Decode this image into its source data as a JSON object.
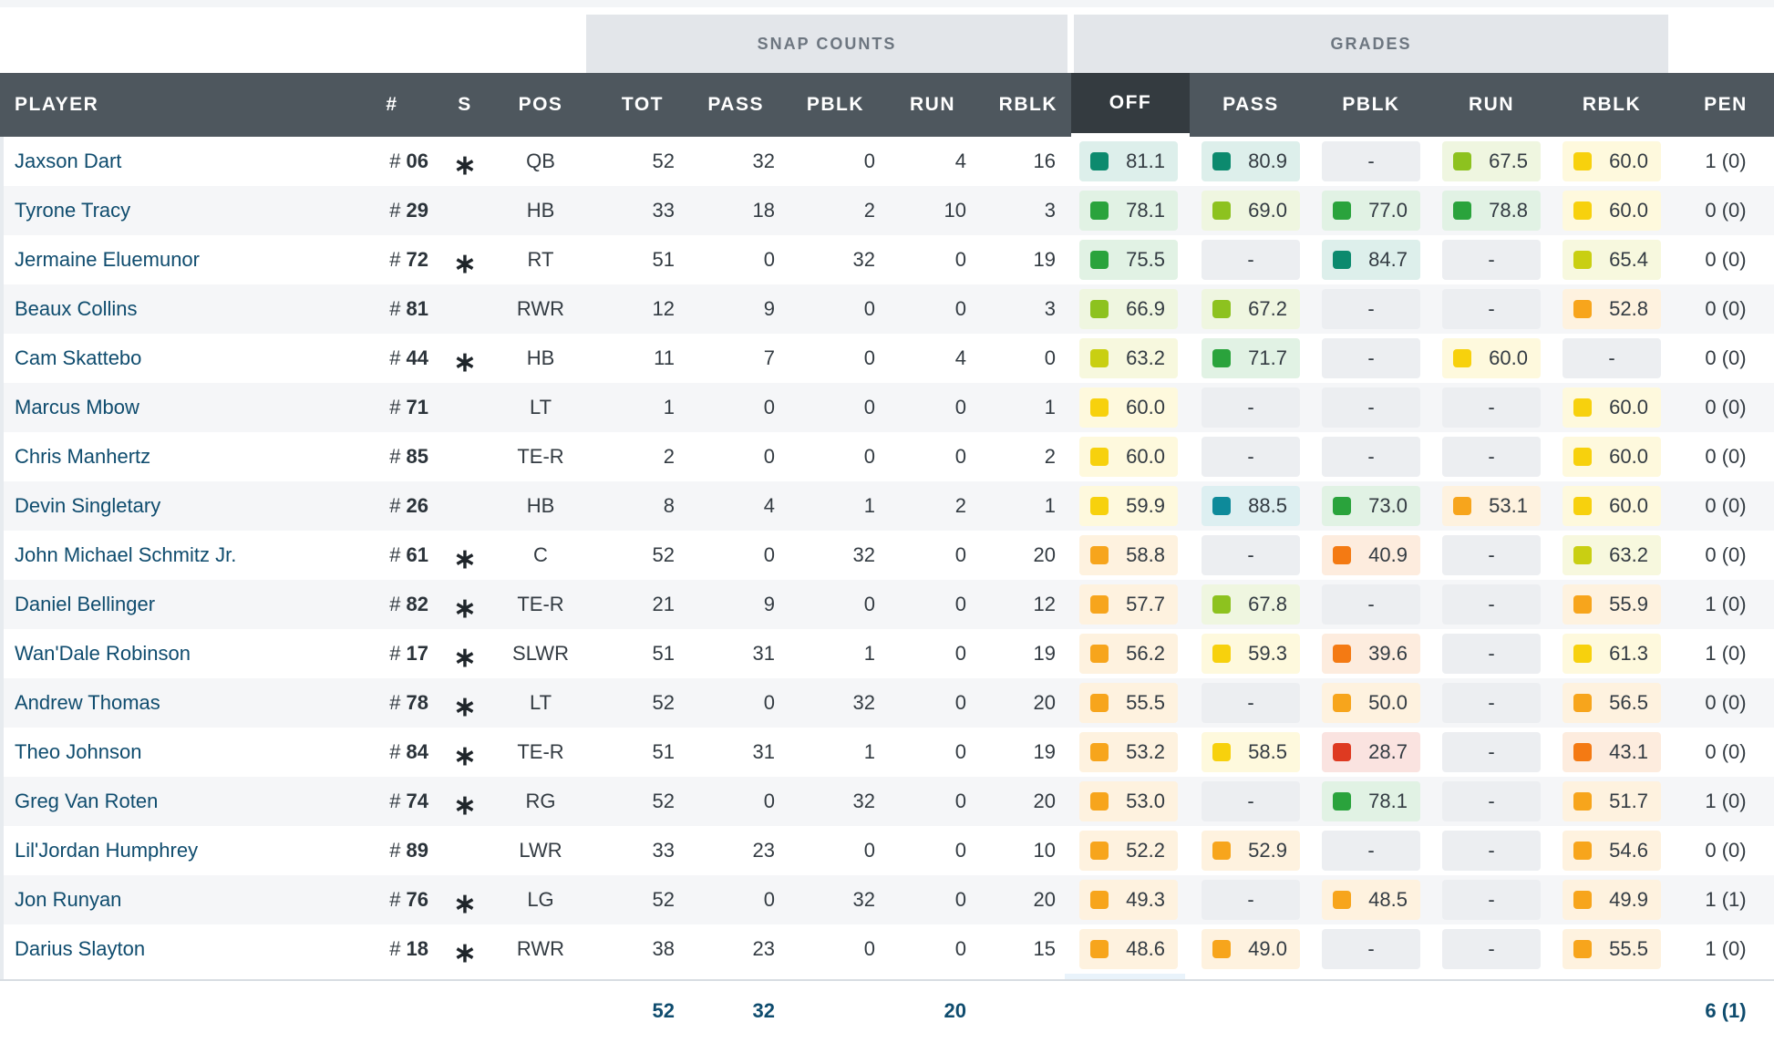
{
  "groups": {
    "snap_counts": "SNAP COUNTS",
    "grades": "GRADES"
  },
  "columns": {
    "player": "PLAYER",
    "number": "#",
    "starter": "S",
    "pos": "POS",
    "tot": "TOT",
    "pass": "PASS",
    "pblk": "PBLK",
    "run": "RUN",
    "rblk": "RBLK",
    "g_off": "OFF",
    "g_pass": "PASS",
    "g_pblk": "PBLK",
    "g_run": "RUN",
    "g_rblk": "RBLK",
    "pen": "PEN"
  },
  "hash_symbol": "#",
  "starter_symbol": "∗",
  "grade_colors": {
    "elite": "#0c8a6e",
    "teal": "#0e8a9a",
    "high": "#2aa33c",
    "good": "#8dc21f",
    "above": "#c9cf12",
    "avg": "#f7d10d",
    "below": "#f7a51c",
    "low": "#f47a13",
    "poor": "#de3a21"
  },
  "players": [
    {
      "name": "Jaxson Dart",
      "jersey": "06",
      "starter": true,
      "pos": "QB",
      "tot": "52",
      "pass": "32",
      "pblk": "0",
      "run": "4",
      "rblk": "16",
      "off": {
        "v": "81.1",
        "c": "elite"
      },
      "gpass": {
        "v": "80.9",
        "c": "elite"
      },
      "gpblk": {
        "v": "-",
        "c": ""
      },
      "grun": {
        "v": "67.5",
        "c": "good"
      },
      "grblk": {
        "v": "60.0",
        "c": "avg"
      },
      "pen": "1 (0)"
    },
    {
      "name": "Tyrone Tracy",
      "jersey": "29",
      "starter": false,
      "pos": "HB",
      "tot": "33",
      "pass": "18",
      "pblk": "2",
      "run": "10",
      "rblk": "3",
      "off": {
        "v": "78.1",
        "c": "high"
      },
      "gpass": {
        "v": "69.0",
        "c": "good"
      },
      "gpblk": {
        "v": "77.0",
        "c": "high"
      },
      "grun": {
        "v": "78.8",
        "c": "high"
      },
      "grblk": {
        "v": "60.0",
        "c": "avg"
      },
      "pen": "0 (0)"
    },
    {
      "name": "Jermaine Eluemunor",
      "jersey": "72",
      "starter": true,
      "pos": "RT",
      "tot": "51",
      "pass": "0",
      "pblk": "32",
      "run": "0",
      "rblk": "19",
      "off": {
        "v": "75.5",
        "c": "high"
      },
      "gpass": {
        "v": "-",
        "c": ""
      },
      "gpblk": {
        "v": "84.7",
        "c": "elite"
      },
      "grun": {
        "v": "-",
        "c": ""
      },
      "grblk": {
        "v": "65.4",
        "c": "above"
      },
      "pen": "0 (0)"
    },
    {
      "name": "Beaux Collins",
      "jersey": "81",
      "starter": false,
      "pos": "RWR",
      "tot": "12",
      "pass": "9",
      "pblk": "0",
      "run": "0",
      "rblk": "3",
      "off": {
        "v": "66.9",
        "c": "good"
      },
      "gpass": {
        "v": "67.2",
        "c": "good"
      },
      "gpblk": {
        "v": "-",
        "c": ""
      },
      "grun": {
        "v": "-",
        "c": ""
      },
      "grblk": {
        "v": "52.8",
        "c": "below"
      },
      "pen": "0 (0)"
    },
    {
      "name": "Cam Skattebo",
      "jersey": "44",
      "starter": true,
      "pos": "HB",
      "tot": "11",
      "pass": "7",
      "pblk": "0",
      "run": "4",
      "rblk": "0",
      "off": {
        "v": "63.2",
        "c": "above"
      },
      "gpass": {
        "v": "71.7",
        "c": "high"
      },
      "gpblk": {
        "v": "-",
        "c": ""
      },
      "grun": {
        "v": "60.0",
        "c": "avg"
      },
      "grblk": {
        "v": "-",
        "c": ""
      },
      "pen": "0 (0)"
    },
    {
      "name": "Marcus Mbow",
      "jersey": "71",
      "starter": false,
      "pos": "LT",
      "tot": "1",
      "pass": "0",
      "pblk": "0",
      "run": "0",
      "rblk": "1",
      "off": {
        "v": "60.0",
        "c": "avg"
      },
      "gpass": {
        "v": "-",
        "c": ""
      },
      "gpblk": {
        "v": "-",
        "c": ""
      },
      "grun": {
        "v": "-",
        "c": ""
      },
      "grblk": {
        "v": "60.0",
        "c": "avg"
      },
      "pen": "0 (0)"
    },
    {
      "name": "Chris Manhertz",
      "jersey": "85",
      "starter": false,
      "pos": "TE-R",
      "tot": "2",
      "pass": "0",
      "pblk": "0",
      "run": "0",
      "rblk": "2",
      "off": {
        "v": "60.0",
        "c": "avg"
      },
      "gpass": {
        "v": "-",
        "c": ""
      },
      "gpblk": {
        "v": "-",
        "c": ""
      },
      "grun": {
        "v": "-",
        "c": ""
      },
      "grblk": {
        "v": "60.0",
        "c": "avg"
      },
      "pen": "0 (0)"
    },
    {
      "name": "Devin Singletary",
      "jersey": "26",
      "starter": false,
      "pos": "HB",
      "tot": "8",
      "pass": "4",
      "pblk": "1",
      "run": "2",
      "rblk": "1",
      "off": {
        "v": "59.9",
        "c": "avg"
      },
      "gpass": {
        "v": "88.5",
        "c": "teal"
      },
      "gpblk": {
        "v": "73.0",
        "c": "high"
      },
      "grun": {
        "v": "53.1",
        "c": "below"
      },
      "grblk": {
        "v": "60.0",
        "c": "avg"
      },
      "pen": "0 (0)"
    },
    {
      "name": "John Michael Schmitz Jr.",
      "jersey": "61",
      "starter": true,
      "pos": "C",
      "tot": "52",
      "pass": "0",
      "pblk": "32",
      "run": "0",
      "rblk": "20",
      "off": {
        "v": "58.8",
        "c": "below"
      },
      "gpass": {
        "v": "-",
        "c": ""
      },
      "gpblk": {
        "v": "40.9",
        "c": "low"
      },
      "grun": {
        "v": "-",
        "c": ""
      },
      "grblk": {
        "v": "63.2",
        "c": "above"
      },
      "pen": "0 (0)"
    },
    {
      "name": "Daniel Bellinger",
      "jersey": "82",
      "starter": true,
      "pos": "TE-R",
      "tot": "21",
      "pass": "9",
      "pblk": "0",
      "run": "0",
      "rblk": "12",
      "off": {
        "v": "57.7",
        "c": "below"
      },
      "gpass": {
        "v": "67.8",
        "c": "good"
      },
      "gpblk": {
        "v": "-",
        "c": ""
      },
      "grun": {
        "v": "-",
        "c": ""
      },
      "grblk": {
        "v": "55.9",
        "c": "below"
      },
      "pen": "1 (0)"
    },
    {
      "name": "Wan'Dale Robinson",
      "jersey": "17",
      "starter": true,
      "pos": "SLWR",
      "tot": "51",
      "pass": "31",
      "pblk": "1",
      "run": "0",
      "rblk": "19",
      "off": {
        "v": "56.2",
        "c": "below"
      },
      "gpass": {
        "v": "59.3",
        "c": "avg"
      },
      "gpblk": {
        "v": "39.6",
        "c": "low"
      },
      "grun": {
        "v": "-",
        "c": ""
      },
      "grblk": {
        "v": "61.3",
        "c": "avg"
      },
      "pen": "1 (0)"
    },
    {
      "name": "Andrew Thomas",
      "jersey": "78",
      "starter": true,
      "pos": "LT",
      "tot": "52",
      "pass": "0",
      "pblk": "32",
      "run": "0",
      "rblk": "20",
      "off": {
        "v": "55.5",
        "c": "below"
      },
      "gpass": {
        "v": "-",
        "c": ""
      },
      "gpblk": {
        "v": "50.0",
        "c": "below"
      },
      "grun": {
        "v": "-",
        "c": ""
      },
      "grblk": {
        "v": "56.5",
        "c": "below"
      },
      "pen": "0 (0)"
    },
    {
      "name": "Theo Johnson",
      "jersey": "84",
      "starter": true,
      "pos": "TE-R",
      "tot": "51",
      "pass": "31",
      "pblk": "1",
      "run": "0",
      "rblk": "19",
      "off": {
        "v": "53.2",
        "c": "below"
      },
      "gpass": {
        "v": "58.5",
        "c": "avg"
      },
      "gpblk": {
        "v": "28.7",
        "c": "poor"
      },
      "grun": {
        "v": "-",
        "c": ""
      },
      "grblk": {
        "v": "43.1",
        "c": "low"
      },
      "pen": "0 (0)"
    },
    {
      "name": "Greg Van Roten",
      "jersey": "74",
      "starter": true,
      "pos": "RG",
      "tot": "52",
      "pass": "0",
      "pblk": "32",
      "run": "0",
      "rblk": "20",
      "off": {
        "v": "53.0",
        "c": "below"
      },
      "gpass": {
        "v": "-",
        "c": ""
      },
      "gpblk": {
        "v": "78.1",
        "c": "high"
      },
      "grun": {
        "v": "-",
        "c": ""
      },
      "grblk": {
        "v": "51.7",
        "c": "below"
      },
      "pen": "1 (0)"
    },
    {
      "name": "Lil'Jordan Humphrey",
      "jersey": "89",
      "starter": false,
      "pos": "LWR",
      "tot": "33",
      "pass": "23",
      "pblk": "0",
      "run": "0",
      "rblk": "10",
      "off": {
        "v": "52.2",
        "c": "below"
      },
      "gpass": {
        "v": "52.9",
        "c": "below"
      },
      "gpblk": {
        "v": "-",
        "c": ""
      },
      "grun": {
        "v": "-",
        "c": ""
      },
      "grblk": {
        "v": "54.6",
        "c": "below"
      },
      "pen": "0 (0)"
    },
    {
      "name": "Jon Runyan",
      "jersey": "76",
      "starter": true,
      "pos": "LG",
      "tot": "52",
      "pass": "0",
      "pblk": "32",
      "run": "0",
      "rblk": "20",
      "off": {
        "v": "49.3",
        "c": "below"
      },
      "gpass": {
        "v": "-",
        "c": ""
      },
      "gpblk": {
        "v": "48.5",
        "c": "below"
      },
      "grun": {
        "v": "-",
        "c": ""
      },
      "grblk": {
        "v": "49.9",
        "c": "below"
      },
      "pen": "1 (1)"
    },
    {
      "name": "Darius Slayton",
      "jersey": "18",
      "starter": true,
      "pos": "RWR",
      "tot": "38",
      "pass": "23",
      "pblk": "0",
      "run": "0",
      "rblk": "15",
      "off": {
        "v": "48.6",
        "c": "below"
      },
      "gpass": {
        "v": "49.0",
        "c": "below"
      },
      "gpblk": {
        "v": "-",
        "c": ""
      },
      "grun": {
        "v": "-",
        "c": ""
      },
      "grblk": {
        "v": "55.5",
        "c": "below"
      },
      "pen": "1 (0)"
    }
  ],
  "totals": {
    "tot": "52",
    "pass": "32",
    "run": "20",
    "pen": "6 (1)"
  }
}
